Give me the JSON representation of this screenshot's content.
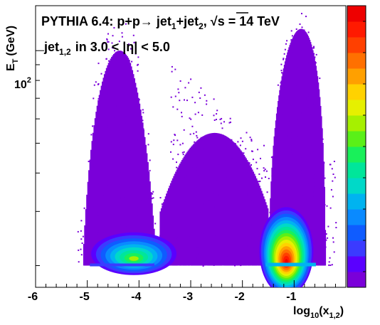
{
  "chart_data": {
    "type": "heatmap",
    "title_parts": {
      "prefix": "PYTHIA 6.4: p+p",
      "jet1": "jet",
      "jet1_sub": "1",
      "plus": "+jet",
      "jet2_sub": "2",
      "sqrt_label": "s = 14 TeV"
    },
    "subtitle_parts": {
      "jet": "jet",
      "sub": "1,2",
      "rest": "in 3.0 < |η| < 5.0"
    },
    "xlabel_parts": {
      "main": "log",
      "sub": "10",
      "mid": "(x",
      "sub2": "1,2",
      "end": ")"
    },
    "ylabel_parts": {
      "main": "E",
      "sub": "T",
      "rest": "(GeV)"
    },
    "x_ticks": [
      "-6",
      "-5",
      "-4",
      "-3",
      "-2",
      "-1"
    ],
    "x_tick_values": [
      -6,
      -5,
      -4,
      -3,
      -2,
      -1
    ],
    "xlim": [
      -6,
      0
    ],
    "y_scale": "log",
    "ylim": [
      17,
      140
    ],
    "y_tick_label": {
      "base": "10",
      "exp": "2"
    },
    "y_tick_value": 100,
    "grid": false,
    "colorbar": true,
    "palette": [
      "#7a00d9",
      "#5a00ff",
      "#3b3bff",
      "#0f5cff",
      "#0a8aff",
      "#00b3f0",
      "#00d9c8",
      "#00e69a",
      "#19f05a",
      "#5af018",
      "#a6f000",
      "#e6f000",
      "#ffd200",
      "#ffa000",
      "#ff7000",
      "#ff4000",
      "#ff1a00",
      "#ee0000"
    ],
    "clusters": [
      {
        "name": "low-x",
        "x_range": [
          -5.1,
          -3.6
        ],
        "y_base": 20,
        "y_peak": 100,
        "hot_x": -4.1,
        "hot_y": 21
      },
      {
        "name": "high-x",
        "x_range": [
          -1.5,
          -0.4
        ],
        "y_base": 20,
        "y_peak": 140,
        "hot_x": -1.15,
        "hot_y": 20.5
      }
    ]
  }
}
